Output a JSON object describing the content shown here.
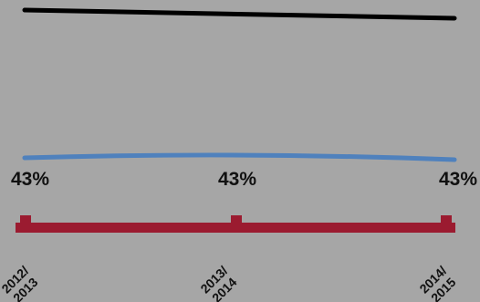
{
  "chart_data": {
    "type": "line",
    "categories": [
      "2012/\n2013",
      "2013/\n2014",
      "2014/\n2015"
    ],
    "series": [
      {
        "values": [
          null,
          null,
          null
        ],
        "color": "#000000"
      },
      {
        "values": [
          43,
          43,
          43
        ],
        "data_labels": [
          "43%",
          "43%",
          "43%"
        ],
        "color": "#4f81bd"
      },
      {
        "values": [
          null,
          null,
          null
        ],
        "color": "#9b1b30"
      }
    ],
    "grid": false,
    "legend": "none"
  }
}
